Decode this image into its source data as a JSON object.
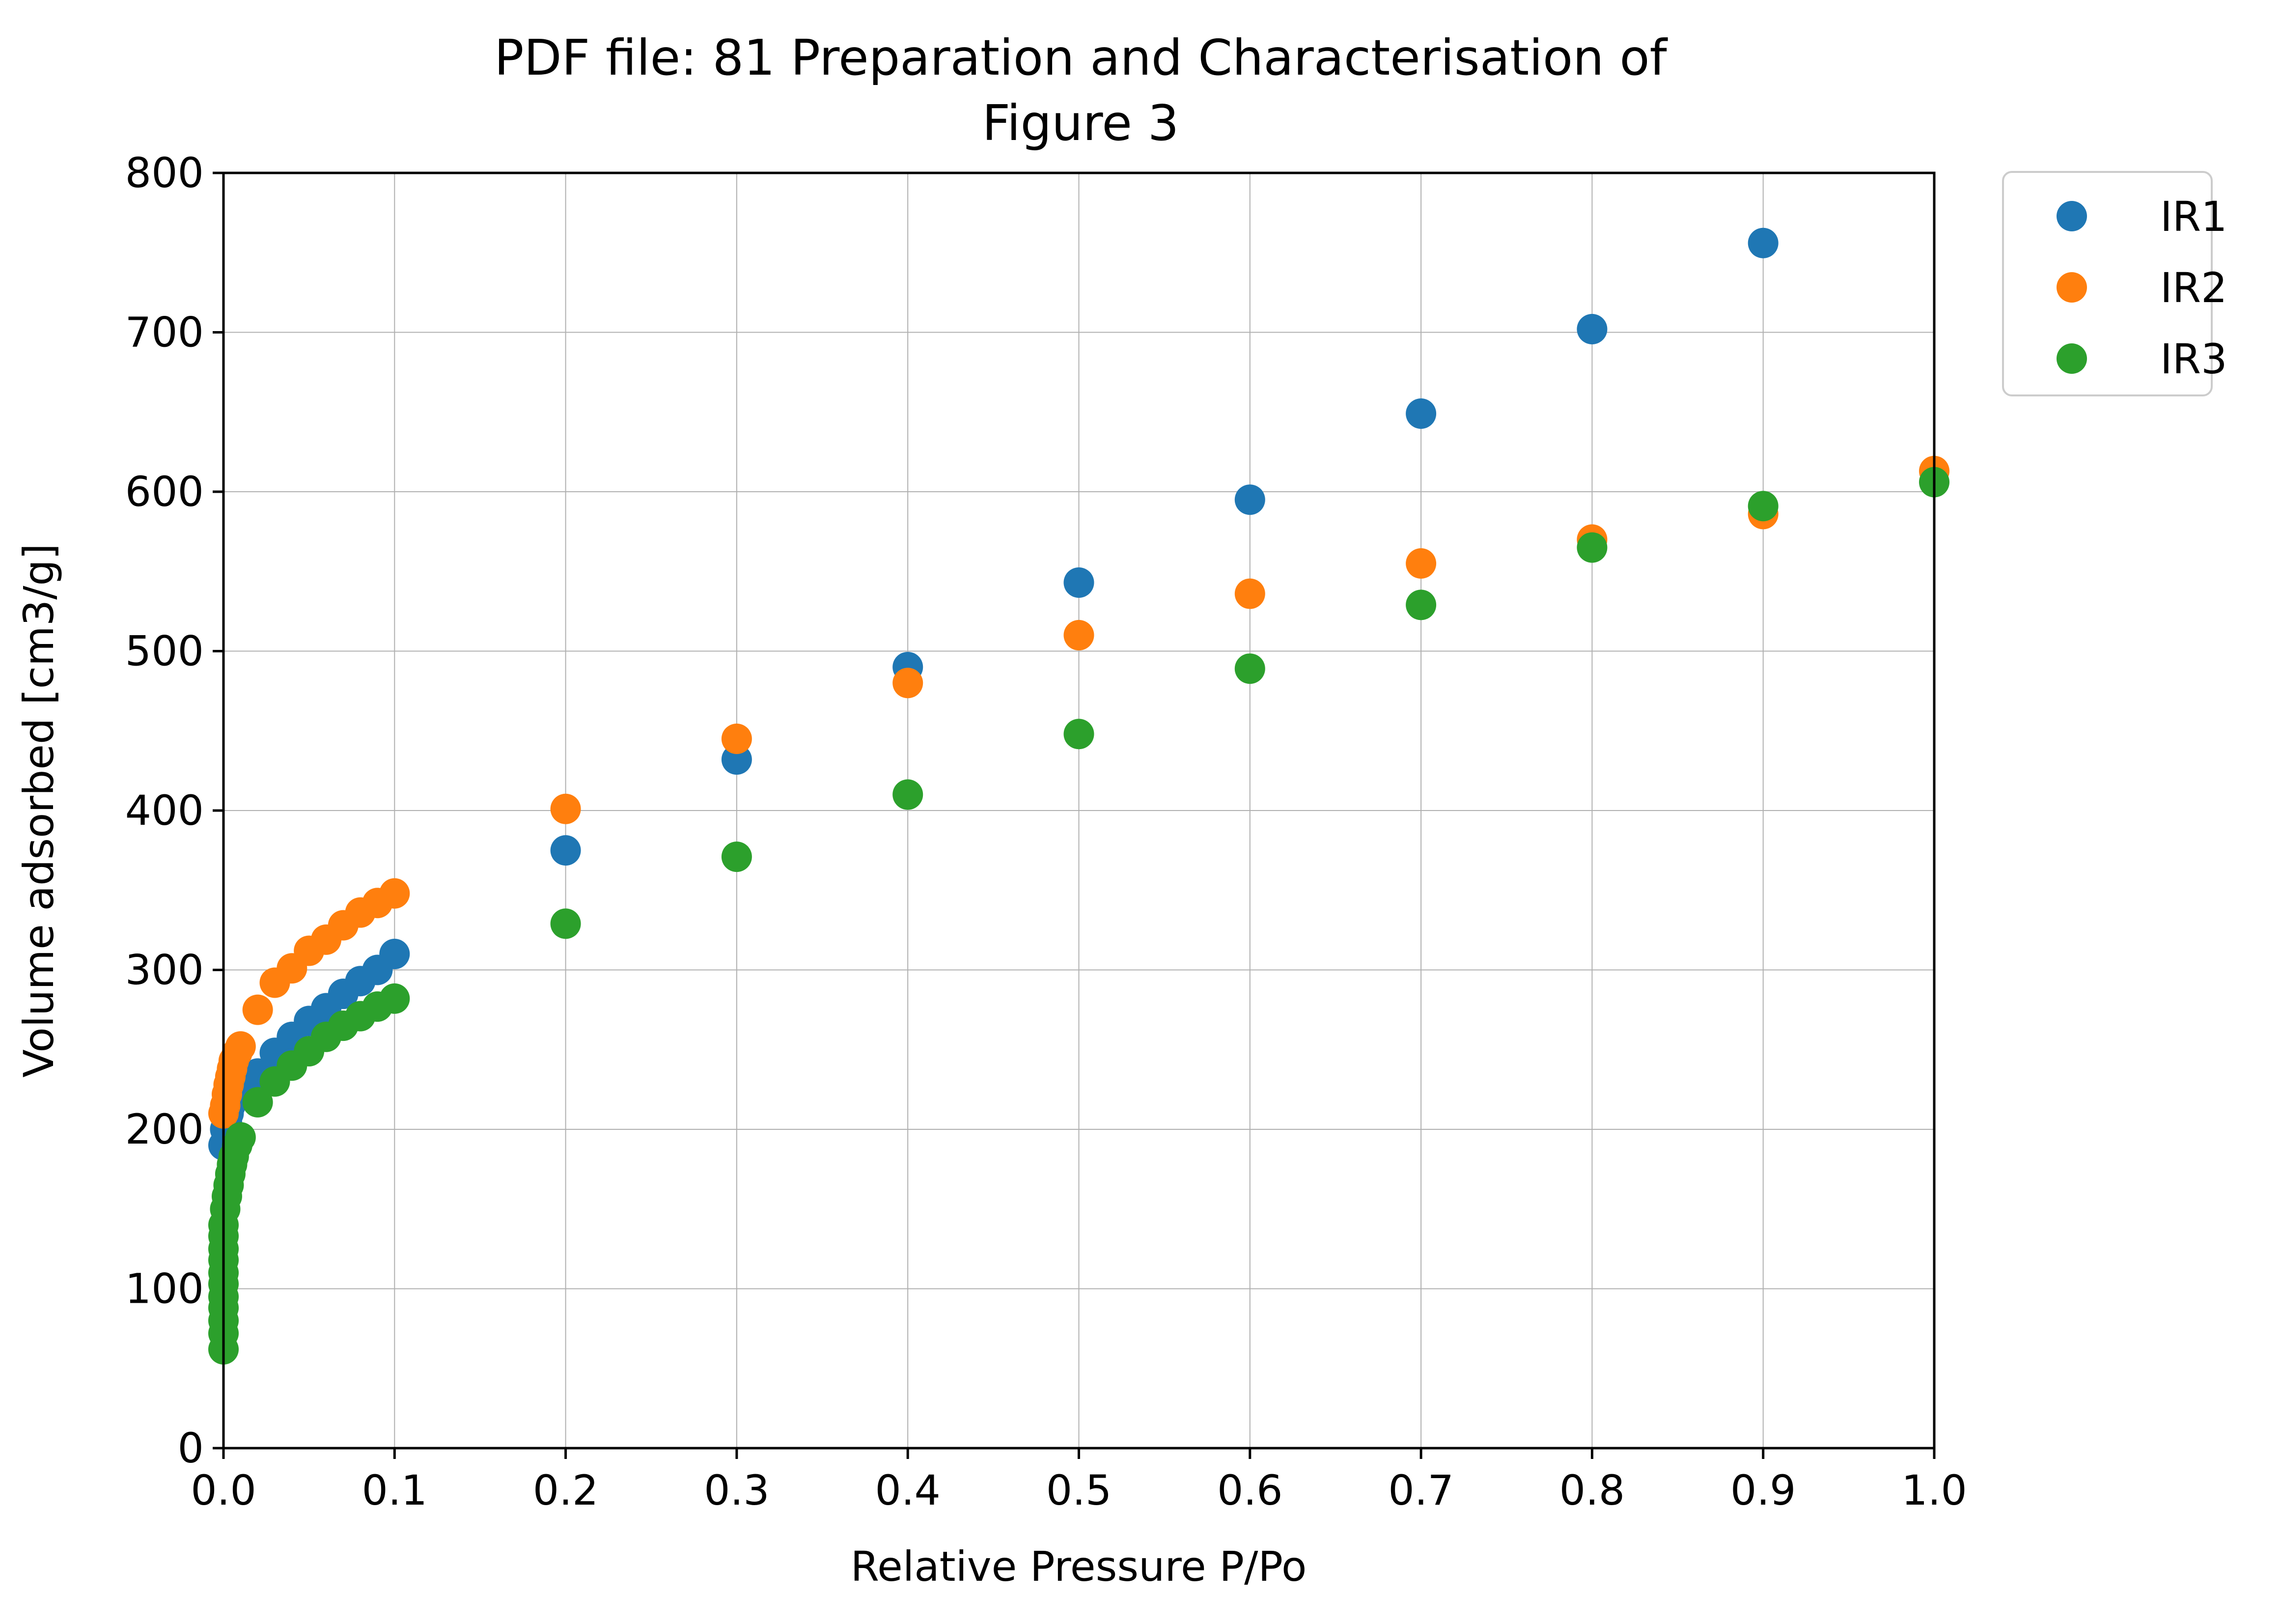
{
  "chart_data": {
    "type": "scatter",
    "title": "PDF file: 81 Preparation and Characterisation of",
    "subtitle": "Figure 3",
    "xlabel": "Relative Pressure P/Po",
    "ylabel": "Volume adsorbed [cm3/g]",
    "xlim": [
      0.0,
      1.0
    ],
    "ylim": [
      0,
      800
    ],
    "xticks": [
      "0.0",
      "0.1",
      "0.2",
      "0.3",
      "0.4",
      "0.5",
      "0.6",
      "0.7",
      "0.8",
      "0.9",
      "1.0"
    ],
    "yticks": [
      "0",
      "100",
      "200",
      "300",
      "400",
      "500",
      "600",
      "700",
      "800"
    ],
    "grid": true,
    "legend_position": "outside-top-right",
    "series": [
      {
        "name": "IR1",
        "color": "#1f77b4",
        "x": [
          0.0,
          0.001,
          0.002,
          0.003,
          0.004,
          0.005,
          0.006,
          0.008,
          0.01,
          0.02,
          0.03,
          0.04,
          0.05,
          0.06,
          0.07,
          0.08,
          0.09,
          0.1,
          0.2,
          0.3,
          0.4,
          0.5,
          0.6,
          0.7,
          0.8,
          0.9
        ],
        "y": [
          190,
          200,
          205,
          210,
          215,
          218,
          220,
          225,
          228,
          235,
          248,
          258,
          268,
          276,
          285,
          293,
          300,
          310,
          375,
          432,
          490,
          543,
          595,
          649,
          702,
          756
        ]
      },
      {
        "name": "IR2",
        "color": "#ff7f0e",
        "x": [
          0.0,
          0.001,
          0.002,
          0.003,
          0.004,
          0.005,
          0.006,
          0.008,
          0.01,
          0.02,
          0.03,
          0.04,
          0.05,
          0.06,
          0.07,
          0.08,
          0.09,
          0.1,
          0.2,
          0.3,
          0.4,
          0.5,
          0.6,
          0.7,
          0.8,
          0.9,
          1.0
        ],
        "y": [
          210,
          215,
          222,
          228,
          233,
          238,
          243,
          248,
          252,
          275,
          292,
          301,
          312,
          319,
          328,
          336,
          342,
          348,
          401,
          445,
          480,
          510,
          536,
          555,
          570,
          586,
          613
        ]
      },
      {
        "name": "IR3",
        "color": "#2ca02c",
        "x": [
          0.0,
          0.0,
          0.0,
          0.0,
          0.0,
          0.0,
          0.0,
          0.0,
          0.0,
          0.0,
          0.0,
          0.001,
          0.002,
          0.003,
          0.004,
          0.005,
          0.006,
          0.008,
          0.01,
          0.02,
          0.03,
          0.04,
          0.05,
          0.06,
          0.07,
          0.08,
          0.09,
          0.1,
          0.2,
          0.3,
          0.4,
          0.5,
          0.6,
          0.7,
          0.8,
          0.9,
          1.0
        ],
        "y": [
          62,
          72,
          80,
          88,
          95,
          103,
          110,
          118,
          125,
          133,
          140,
          150,
          158,
          165,
          172,
          178,
          183,
          190,
          195,
          217,
          230,
          240,
          249,
          258,
          265,
          271,
          277,
          282,
          329,
          371,
          410,
          448,
          489,
          529,
          565,
          591,
          606
        ]
      }
    ]
  }
}
